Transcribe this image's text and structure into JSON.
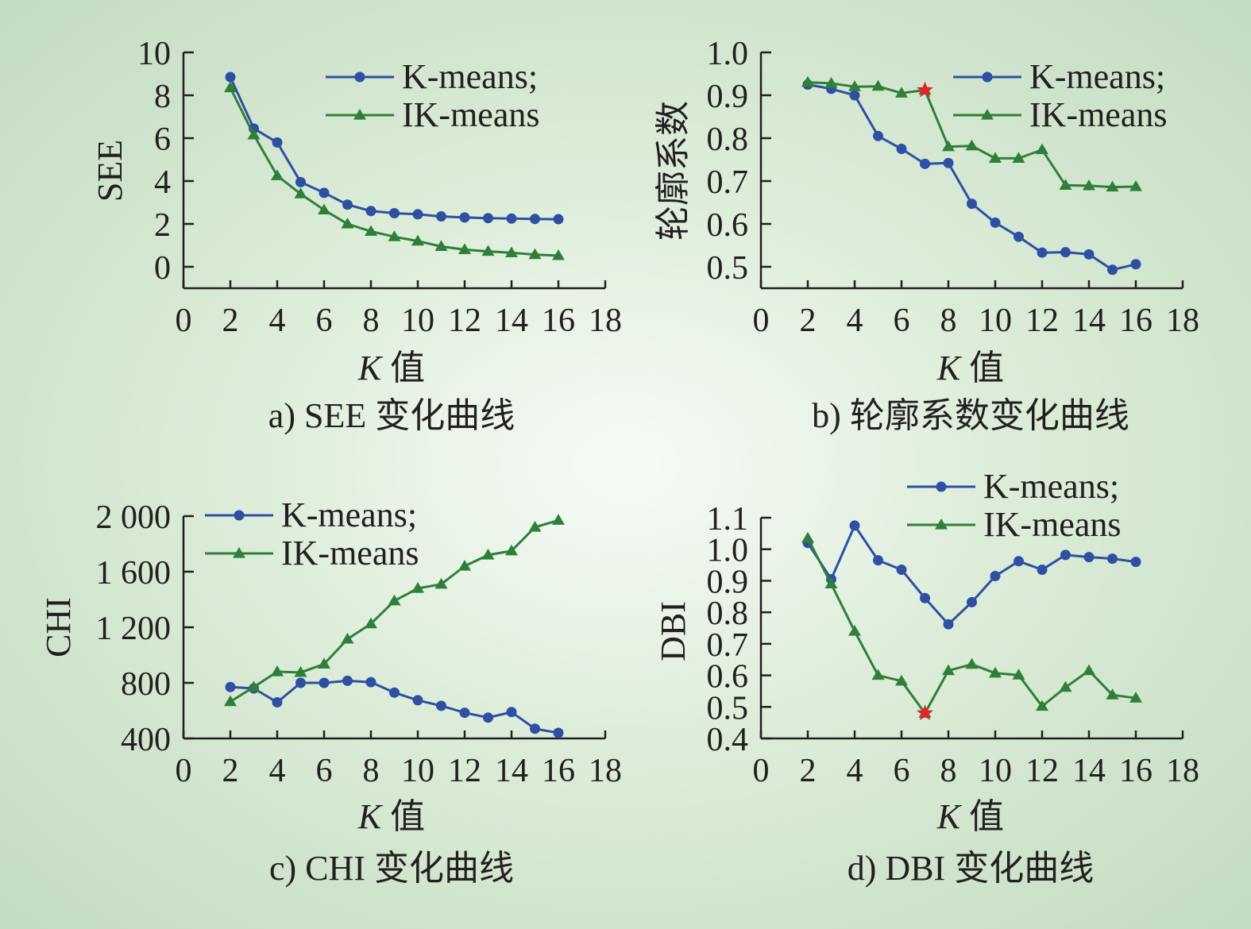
{
  "colors": {
    "kmeans": "#2e4fa3",
    "ikmeans": "#2f7f3b",
    "star": "#e8202a",
    "axis": "#231f20"
  },
  "chart_data": [
    {
      "type": "line",
      "caption": "a) SEE 变化曲线",
      "xlabel_italic": "K",
      "xlabel_rest": " 值",
      "ylabel": "SEE",
      "xlim": [
        0,
        18
      ],
      "ylim": [
        -1,
        10
      ],
      "x_ticks": [
        "0",
        "2",
        "4",
        "6",
        "8",
        "10",
        "12",
        "14",
        "16",
        "18"
      ],
      "y_ticks": [
        {
          "v": 0,
          "label": "0"
        },
        {
          "v": 2,
          "label": "2"
        },
        {
          "v": 4,
          "label": "4"
        },
        {
          "v": 6,
          "label": "6"
        },
        {
          "v": 8,
          "label": "8"
        },
        {
          "v": 10,
          "label": "10"
        }
      ],
      "legend_position": "top-right",
      "x": [
        2,
        3,
        4,
        5,
        6,
        7,
        8,
        9,
        10,
        11,
        12,
        13,
        14,
        15,
        16
      ],
      "series": [
        {
          "name": "K-means;",
          "marker": "circle",
          "color": "#2e4fa3",
          "values": [
            8.85,
            6.45,
            5.8,
            3.95,
            3.45,
            2.9,
            2.6,
            2.5,
            2.45,
            2.35,
            2.3,
            2.27,
            2.25,
            2.23,
            2.22
          ]
        },
        {
          "name": "IK-means",
          "marker": "triangle",
          "color": "#2f7f3b",
          "values": [
            8.35,
            6.15,
            4.25,
            3.4,
            2.65,
            2.0,
            1.65,
            1.4,
            1.2,
            0.95,
            0.8,
            0.72,
            0.65,
            0.57,
            0.52
          ]
        }
      ],
      "stars": []
    },
    {
      "type": "line",
      "caption": "b) 轮廓系数变化曲线",
      "xlabel_italic": "K",
      "xlabel_rest": " 值",
      "ylabel": "轮廓系数",
      "xlim": [
        0,
        18
      ],
      "ylim": [
        0.45,
        1.0
      ],
      "x_ticks": [
        "0",
        "2",
        "4",
        "6",
        "8",
        "10",
        "12",
        "14",
        "16",
        "18"
      ],
      "y_ticks": [
        {
          "v": 0.5,
          "label": "0.5"
        },
        {
          "v": 0.6,
          "label": "0.6"
        },
        {
          "v": 0.7,
          "label": "0.7"
        },
        {
          "v": 0.8,
          "label": "0.8"
        },
        {
          "v": 0.9,
          "label": "0.9"
        },
        {
          "v": 1.0,
          "label": "1.0"
        }
      ],
      "legend_position": "top-right",
      "x": [
        2,
        3,
        4,
        5,
        6,
        7,
        8,
        9,
        10,
        11,
        12,
        13,
        14,
        15,
        16
      ],
      "series": [
        {
          "name": "K-means;",
          "marker": "circle",
          "color": "#2e4fa3",
          "values": [
            0.925,
            0.915,
            0.9,
            0.805,
            0.775,
            0.74,
            0.742,
            0.647,
            0.603,
            0.57,
            0.533,
            0.534,
            0.529,
            0.493,
            0.506
          ]
        },
        {
          "name": "IK-means",
          "marker": "triangle",
          "color": "#2f7f3b",
          "values": [
            0.93,
            0.928,
            0.92,
            0.921,
            0.905,
            0.912,
            0.78,
            0.782,
            0.753,
            0.753,
            0.773,
            0.69,
            0.689,
            0.686,
            0.687
          ]
        }
      ],
      "stars": [
        {
          "x": 7,
          "y": 0.912
        }
      ]
    },
    {
      "type": "line",
      "caption": "c) CHI 变化曲线",
      "xlabel_italic": "K",
      "xlabel_rest": " 值",
      "ylabel": "CHI",
      "xlim": [
        0,
        18
      ],
      "ylim": [
        400,
        2000
      ],
      "x_ticks": [
        "0",
        "2",
        "4",
        "6",
        "8",
        "10",
        "12",
        "14",
        "16",
        "18"
      ],
      "y_ticks": [
        {
          "v": 400,
          "label": "400"
        },
        {
          "v": 800,
          "label": "800"
        },
        {
          "v": 1200,
          "label": "1 200"
        },
        {
          "v": 1600,
          "label": "1 600"
        },
        {
          "v": 2000,
          "label": "2 000"
        }
      ],
      "legend_position": "top-left",
      "x": [
        2,
        3,
        4,
        5,
        6,
        7,
        8,
        9,
        10,
        11,
        12,
        13,
        14,
        15,
        16
      ],
      "series": [
        {
          "name": "K-means;",
          "marker": "circle",
          "color": "#2e4fa3",
          "values": [
            770,
            760,
            660,
            800,
            800,
            815,
            805,
            730,
            675,
            635,
            585,
            550,
            590,
            470,
            440
          ]
        },
        {
          "name": "IK-means",
          "marker": "triangle",
          "color": "#2f7f3b",
          "values": [
            665,
            770,
            880,
            875,
            935,
            1115,
            1225,
            1390,
            1480,
            1510,
            1640,
            1720,
            1750,
            1920,
            1970
          ]
        }
      ],
      "stars": []
    },
    {
      "type": "line",
      "caption": "d) DBI 变化曲线",
      "xlabel_italic": "K",
      "xlabel_rest": " 值",
      "ylabel": "DBI",
      "xlim": [
        0,
        18
      ],
      "ylim": [
        0.4,
        1.1
      ],
      "x_ticks": [
        "0",
        "2",
        "4",
        "6",
        "8",
        "10",
        "12",
        "14",
        "16",
        "18"
      ],
      "y_ticks": [
        {
          "v": 0.4,
          "label": "0.4"
        },
        {
          "v": 0.5,
          "label": "0.5"
        },
        {
          "v": 0.6,
          "label": "0.6"
        },
        {
          "v": 0.7,
          "label": "0.7"
        },
        {
          "v": 0.8,
          "label": "0.8"
        },
        {
          "v": 0.9,
          "label": "0.9"
        },
        {
          "v": 1.0,
          "label": "1.0"
        },
        {
          "v": 1.1,
          "label": "1.1"
        }
      ],
      "legend_position": "top-right",
      "x": [
        2,
        3,
        4,
        5,
        6,
        7,
        8,
        9,
        10,
        11,
        12,
        13,
        14,
        15,
        16
      ],
      "series": [
        {
          "name": "K-means;",
          "marker": "circle",
          "color": "#2e4fa3",
          "values": [
            1.02,
            0.905,
            1.075,
            0.965,
            0.935,
            0.845,
            0.762,
            0.832,
            0.915,
            0.962,
            0.935,
            0.982,
            0.975,
            0.97,
            0.96
          ]
        },
        {
          "name": "IK-means",
          "marker": "triangle",
          "color": "#2f7f3b",
          "values": [
            1.035,
            0.89,
            0.74,
            0.6,
            0.582,
            0.48,
            0.615,
            0.635,
            0.607,
            0.601,
            0.502,
            0.562,
            0.615,
            0.538,
            0.528
          ]
        }
      ],
      "stars": [
        {
          "x": 7,
          "y": 0.48
        }
      ]
    }
  ]
}
